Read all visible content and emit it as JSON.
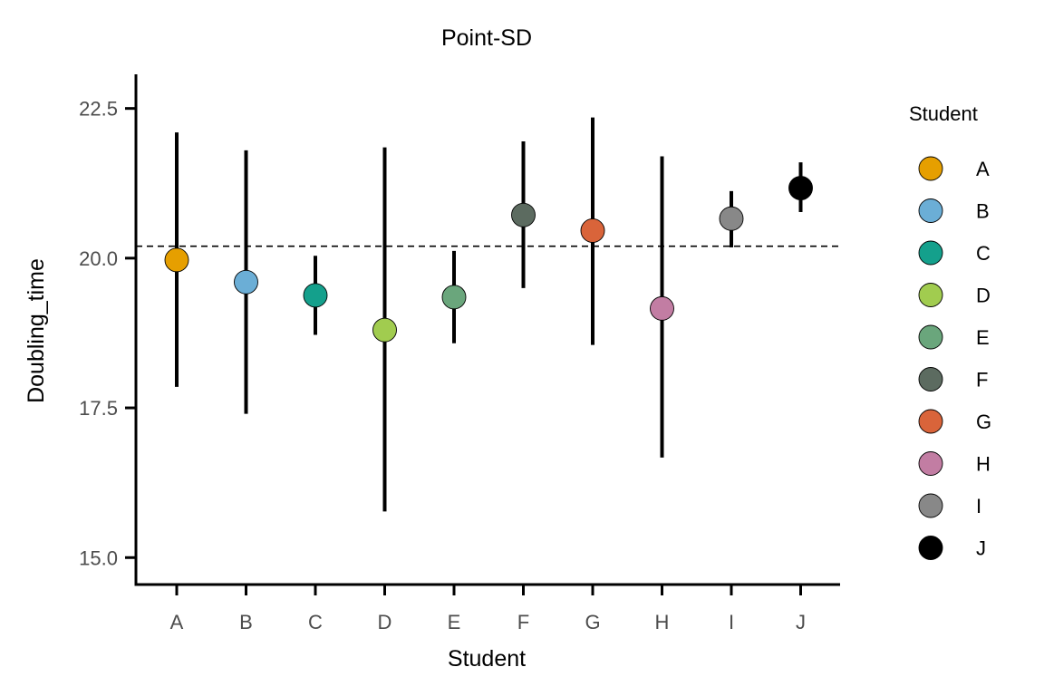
{
  "chart_data": {
    "type": "scatter",
    "title": "Point-SD",
    "xlabel": "Student",
    "ylabel": "Doubling_time",
    "categories": [
      "A",
      "B",
      "C",
      "D",
      "E",
      "F",
      "G",
      "H",
      "I",
      "J"
    ],
    "series": [
      {
        "points": [
          {
            "x": "A",
            "y": 19.97,
            "ymin": 17.85,
            "ymax": 22.1,
            "color": "#E69F00"
          },
          {
            "x": "B",
            "y": 19.6,
            "ymin": 17.4,
            "ymax": 21.8,
            "color": "#6BAED6"
          },
          {
            "x": "C",
            "y": 19.38,
            "ymin": 18.72,
            "ymax": 20.04,
            "color": "#14A08C"
          },
          {
            "x": "D",
            "y": 18.8,
            "ymin": 15.77,
            "ymax": 21.85,
            "color": "#A1CC4F"
          },
          {
            "x": "E",
            "y": 19.35,
            "ymin": 18.58,
            "ymax": 20.12,
            "color": "#6AA67C"
          },
          {
            "x": "F",
            "y": 20.72,
            "ymin": 19.5,
            "ymax": 21.95,
            "color": "#5C6B60"
          },
          {
            "x": "G",
            "y": 20.46,
            "ymin": 18.55,
            "ymax": 22.35,
            "color": "#D9643A"
          },
          {
            "x": "H",
            "y": 19.16,
            "ymin": 16.67,
            "ymax": 21.7,
            "color": "#C27DA3"
          },
          {
            "x": "I",
            "y": 20.66,
            "ymin": 20.18,
            "ymax": 21.12,
            "color": "#888888"
          },
          {
            "x": "J",
            "y": 21.17,
            "ymin": 20.77,
            "ymax": 21.6,
            "color": "#000000"
          }
        ]
      }
    ],
    "reference_line": {
      "y": 20.2,
      "style": "dashed"
    },
    "yticks": [
      15.0,
      17.5,
      20.0,
      22.5
    ],
    "ytick_labels": [
      "15.0",
      "17.5",
      "20.0",
      "22.5"
    ],
    "ylim": [
      14.55,
      23.07
    ],
    "grid": false,
    "legend": {
      "title": "Student",
      "position": "right",
      "entries": [
        "A",
        "B",
        "C",
        "D",
        "E",
        "F",
        "G",
        "H",
        "I",
        "J"
      ]
    }
  }
}
